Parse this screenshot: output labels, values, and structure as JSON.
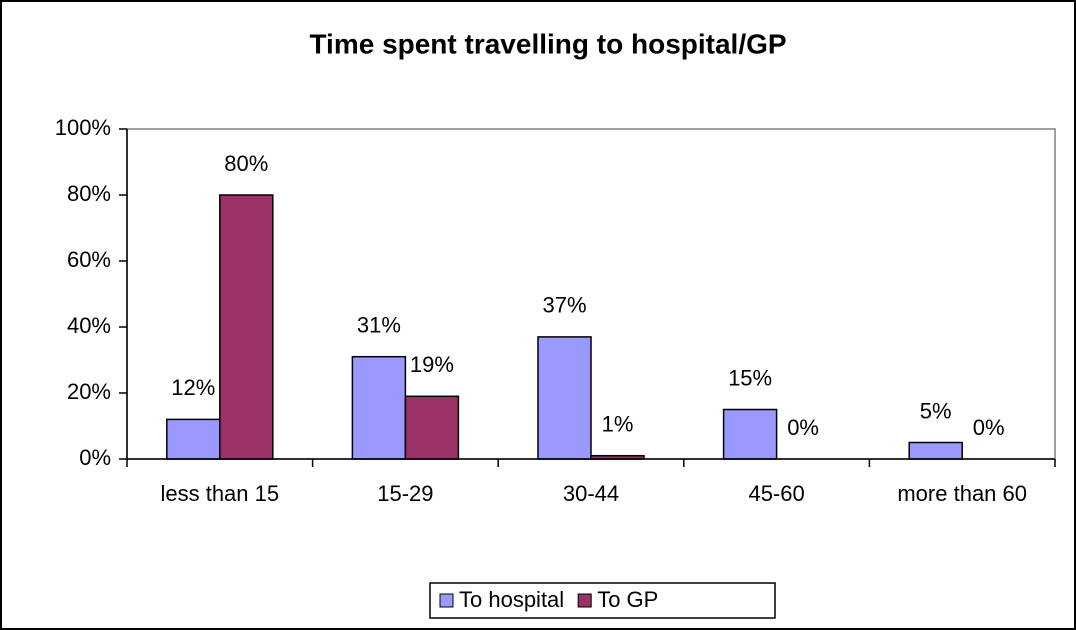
{
  "chart_data": {
    "type": "bar",
    "title": "Time spent travelling to hospital/GP",
    "categories": [
      "less than 15",
      "15-29",
      "30-44",
      "45-60",
      "more than 60"
    ],
    "series": [
      {
        "name": "To hospital",
        "color": "#9999ff",
        "values": [
          12,
          31,
          37,
          15,
          5
        ],
        "value_labels": [
          "12%",
          "31%",
          "37%",
          "15%",
          "5%"
        ]
      },
      {
        "name": "To GP",
        "color": "#993366",
        "values": [
          80,
          19,
          1,
          0,
          0
        ],
        "value_labels": [
          "80%",
          "19%",
          "1%",
          "0%",
          "0%"
        ]
      }
    ],
    "ylim": [
      0,
      100
    ],
    "yticks": [
      {
        "value": 0,
        "label": "0%"
      },
      {
        "value": 20,
        "label": "20%"
      },
      {
        "value": 40,
        "label": "40%"
      },
      {
        "value": 60,
        "label": "60%"
      },
      {
        "value": 80,
        "label": "80%"
      },
      {
        "value": 100,
        "label": "100%"
      }
    ],
    "legend": "bottom"
  }
}
